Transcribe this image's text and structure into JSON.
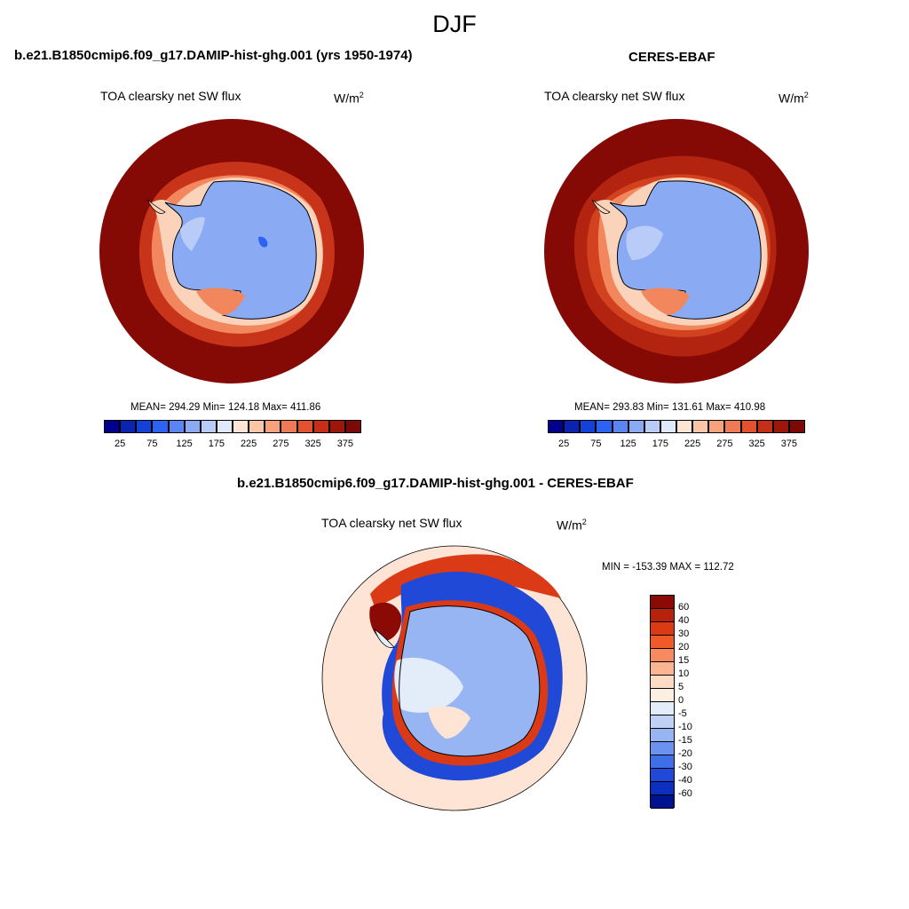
{
  "main_title": "DJF",
  "panels": [
    {
      "title": "b.e21.B1850cmip6.f09_g17.DAMIP-hist-ghg.001 (yrs 1950-1974)",
      "variable": "TOA clearsky net SW flux",
      "units_base": "W/m",
      "units_exp": "2",
      "stats": "MEAN= 294.29  Min= 124.18  Max= 411.86"
    },
    {
      "title": "CERES-EBAF",
      "variable": "TOA clearsky net SW flux",
      "units_base": "W/m",
      "units_exp": "2",
      "stats": "MEAN= 293.83  Min= 131.61  Max= 410.98"
    },
    {
      "title": "b.e21.B1850cmip6.f09_g17.DAMIP-hist-ghg.001 - CERES-EBAF",
      "variable": "TOA clearsky net SW flux",
      "units_base": "W/m",
      "units_exp": "2",
      "stats": "MIN = -153.39 MAX = 112.72"
    }
  ],
  "abs_colorbar": {
    "colors": [
      "#00008c",
      "#0b24b0",
      "#1442d6",
      "#2e62f0",
      "#5a85f2",
      "#8aabf4",
      "#b9cbf7",
      "#e0e9fb",
      "#fde4d4",
      "#fbc6a8",
      "#f7a27d",
      "#f07a55",
      "#e2522f",
      "#c52e17",
      "#9c160a",
      "#7a0a05"
    ],
    "labels": [
      "25",
      "75",
      "125",
      "175",
      "225",
      "275",
      "325",
      "375"
    ]
  },
  "diff_colorbar": {
    "colors": [
      "#8c0a05",
      "#b8210c",
      "#da3a15",
      "#f05a28",
      "#f78a5e",
      "#fbb592",
      "#fddac4",
      "#fdeee2",
      "#e3edfa",
      "#bfd2f6",
      "#97b5f2",
      "#6b92ee",
      "#3f6fe8",
      "#2149d8",
      "#0d2fbf",
      "#00138f"
    ],
    "labels": [
      "60",
      "40",
      "30",
      "20",
      "15",
      "10",
      "5",
      "0",
      "-5",
      "-10",
      "-15",
      "-20",
      "-30",
      "-40",
      "-60"
    ]
  },
  "map_colors": {
    "ocean_outer": "#850a06",
    "ocean_mid": "#c8341a",
    "ocean_inner": "#f2875d",
    "sea_ice": "#fbd3bb",
    "ice_light": "#b9cbf7",
    "ice_main": "#8aabf4",
    "coast": "#000000",
    "diff_bg": "#fde4d4",
    "diff_neg": "#2149d8",
    "diff_pos": "#da3a15"
  }
}
